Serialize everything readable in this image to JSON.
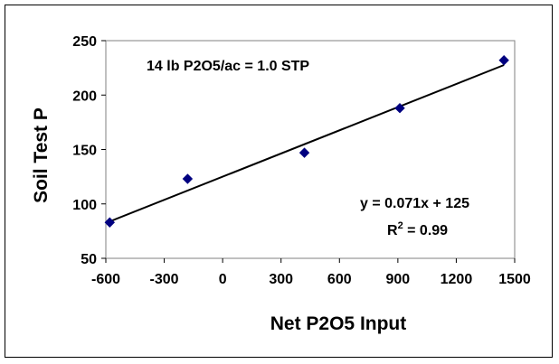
{
  "chart_data": {
    "type": "scatter",
    "title": "",
    "xlabel": "Net P2O5 Input",
    "ylabel": "Soil Test P",
    "xlim": [
      -600,
      1500
    ],
    "ylim": [
      50,
      250
    ],
    "xticks": [
      -600,
      -300,
      0,
      300,
      600,
      900,
      1200,
      1500
    ],
    "yticks": [
      50,
      100,
      150,
      200,
      250
    ],
    "grid": false,
    "legend": "none",
    "series": [
      {
        "x": [
          -580,
          -180,
          420,
          910,
          1445
        ],
        "y": [
          83,
          123,
          147,
          188,
          232
        ],
        "marker": "diamond",
        "color": "#000080"
      }
    ],
    "trendline": {
      "slope": 0.071,
      "intercept": 125,
      "x_range": [
        -580,
        1445
      ],
      "color": "#000000"
    },
    "annotations": {
      "rate": "14 lb P2O5/ac = 1.0 STP",
      "equation": "y = 0.071x + 125",
      "r2_prefix": "R",
      "r2_sup": "2",
      "r2_suffix": " = 0.99"
    }
  }
}
